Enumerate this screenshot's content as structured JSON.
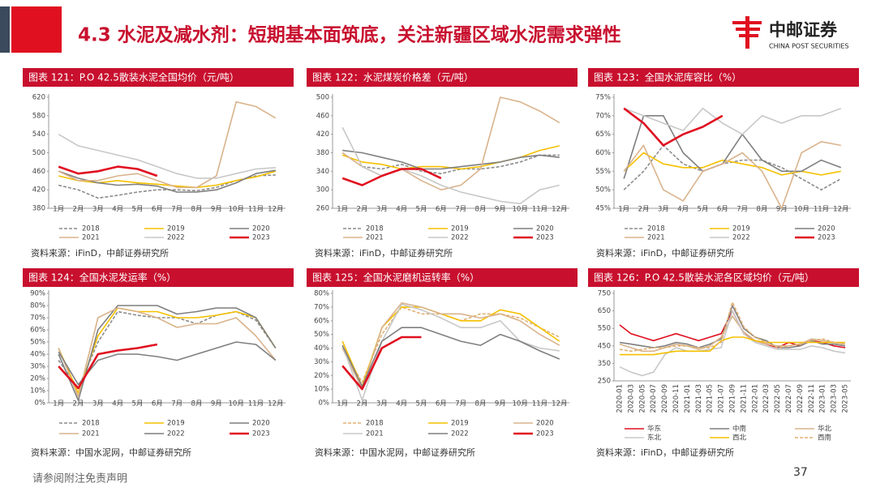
{
  "header": {
    "title": "4.3 水泥及减水剂：短期基本面筑底，关注新疆区域水泥需求弹性",
    "logo_cn": "中邮证券",
    "logo_en": "CHINA POST SECURITIES"
  },
  "footer": {
    "disclaimer": "请参阅附注免责声明",
    "page": "37"
  },
  "chart_data": [
    {
      "type": "line",
      "title": "图表 121：P.O 42.5散装水泥全国均价（元/吨）",
      "source": "资料来源：iFinD，中邮证券研究所",
      "categories": [
        "1月",
        "2月",
        "3月",
        "4月",
        "5月",
        "6月",
        "7月",
        "8月",
        "9月",
        "10月",
        "11月",
        "12月"
      ],
      "ylim": [
        380,
        620
      ],
      "yticks": [
        380,
        420,
        460,
        500,
        540,
        580,
        620
      ],
      "series": [
        {
          "name": "2018",
          "color": "#8c8c8c",
          "dashed": true,
          "values": [
            430,
            420,
            402,
            408,
            415,
            420,
            420,
            418,
            425,
            440,
            450,
            452
          ]
        },
        {
          "name": "2019",
          "color": "#f5c000",
          "values": [
            450,
            440,
            435,
            440,
            435,
            432,
            428,
            425,
            430,
            440,
            448,
            460
          ]
        },
        {
          "name": "2020",
          "color": "#7f7f7f",
          "values": [
            460,
            445,
            435,
            430,
            432,
            428,
            415,
            415,
            420,
            435,
            455,
            462
          ]
        },
        {
          "name": "2021",
          "color": "#d9b38c",
          "values": [
            460,
            440,
            440,
            450,
            455,
            440,
            425,
            425,
            450,
            610,
            600,
            575
          ]
        },
        {
          "name": "2022",
          "color": "#c8c8c8",
          "values": [
            540,
            515,
            505,
            495,
            485,
            470,
            455,
            445,
            445,
            455,
            465,
            468
          ]
        },
        {
          "name": "2023",
          "color": "#e01020",
          "values": [
            470,
            455,
            460,
            470,
            465,
            450,
            null,
            null,
            null,
            null,
            null,
            null
          ]
        }
      ]
    },
    {
      "type": "line",
      "title": "图表 122：水泥煤炭价格差（元/吨）",
      "source": "资料来源：iFinD，中邮证券研究所",
      "categories": [
        "1月",
        "2月",
        "3月",
        "4月",
        "5月",
        "6月",
        "7月",
        "8月",
        "9月",
        "10月",
        "11月",
        "12月"
      ],
      "ylim": [
        260,
        500
      ],
      "yticks": [
        260,
        300,
        340,
        380,
        420,
        460,
        500
      ],
      "series": [
        {
          "name": "2018",
          "color": "#8c8c8c",
          "dashed": true,
          "values": [
            380,
            350,
            345,
            355,
            340,
            335,
            345,
            345,
            350,
            360,
            375,
            375
          ]
        },
        {
          "name": "2019",
          "color": "#f5c000",
          "values": [
            375,
            360,
            355,
            345,
            350,
            350,
            345,
            350,
            360,
            370,
            385,
            395
          ]
        },
        {
          "name": "2020",
          "color": "#7f7f7f",
          "values": [
            385,
            380,
            370,
            360,
            345,
            345,
            350,
            355,
            360,
            370,
            375,
            370
          ]
        },
        {
          "name": "2021",
          "color": "#d9b38c",
          "values": [
            380,
            350,
            330,
            345,
            320,
            300,
            310,
            345,
            500,
            490,
            470,
            445
          ]
        },
        {
          "name": "2022",
          "color": "#c8c8c8",
          "values": [
            435,
            350,
            330,
            345,
            330,
            310,
            295,
            285,
            275,
            270,
            300,
            310
          ]
        },
        {
          "name": "2023",
          "color": "#e01020",
          "values": [
            325,
            310,
            330,
            345,
            345,
            325,
            null,
            null,
            null,
            null,
            null,
            null
          ]
        }
      ]
    },
    {
      "type": "line",
      "title": "图表 123：全国水泥库容比（%）",
      "source": "资料来源：iFinD，中邮证券研究所",
      "categories": [
        "1月",
        "2月",
        "3月",
        "4月",
        "5月",
        "6月",
        "7月",
        "8月",
        "9月",
        "10月",
        "11月",
        "12月"
      ],
      "ylim": [
        45,
        75
      ],
      "yticks": [
        {
          "value": 45,
          "label": "45%"
        },
        {
          "value": 50,
          "label": "50%"
        },
        {
          "value": 55,
          "label": "55%"
        },
        {
          "value": 60,
          "label": "60%"
        },
        {
          "value": 65,
          "label": "65%"
        },
        {
          "value": 70,
          "label": "70%"
        },
        {
          "value": 75,
          "label": "75%"
        }
      ],
      "series": [
        {
          "name": "2018",
          "color": "#8c8c8c",
          "dashed": true,
          "values": [
            50,
            55,
            62,
            57,
            55,
            57,
            58,
            58,
            56,
            53,
            50,
            53
          ]
        },
        {
          "name": "2019",
          "color": "#f5c000",
          "values": [
            55,
            60,
            57,
            56,
            56,
            58,
            57,
            56,
            54,
            55,
            54,
            55
          ]
        },
        {
          "name": "2020",
          "color": "#7f7f7f",
          "values": [
            53,
            70,
            70,
            60,
            55,
            57,
            65,
            58,
            55,
            55,
            58,
            56
          ]
        },
        {
          "name": "2021",
          "color": "#d9b38c",
          "values": [
            55,
            62,
            50,
            47,
            55,
            57,
            60,
            55,
            45,
            60,
            63,
            62
          ]
        },
        {
          "name": "2022",
          "color": "#c8c8c8",
          "values": [
            72,
            70,
            68,
            66,
            72,
            68,
            65,
            70,
            68,
            70,
            70,
            72
          ]
        },
        {
          "name": "2023",
          "color": "#e01020",
          "values": [
            72,
            68,
            62,
            65,
            67,
            70,
            null,
            null,
            null,
            null,
            null,
            null
          ]
        }
      ]
    },
    {
      "type": "line",
      "title": "图表 124：全国水泥发运率（%）",
      "source": "资料来源：中国水泥网，中邮证券研究所",
      "categories": [
        "1月",
        "2月",
        "3月",
        "4月",
        "5月",
        "6月",
        "7月",
        "8月",
        "9月",
        "10月",
        "11月",
        "12月"
      ],
      "ylim": [
        0,
        90
      ],
      "yticks": [
        {
          "value": 0,
          "label": "0%"
        },
        {
          "value": 10,
          "label": "10%"
        },
        {
          "value": 20,
          "label": "20%"
        },
        {
          "value": 30,
          "label": "30%"
        },
        {
          "value": 40,
          "label": "40%"
        },
        {
          "value": 50,
          "label": "50%"
        },
        {
          "value": 60,
          "label": "60%"
        },
        {
          "value": 70,
          "label": "70%"
        },
        {
          "value": 80,
          "label": "80%"
        },
        {
          "value": 90,
          "label": "90%"
        }
      ],
      "series": [
        {
          "name": "2018",
          "color": "#8c8c8c",
          "dashed": true,
          "values": [
            35,
            12,
            50,
            75,
            72,
            70,
            70,
            65,
            72,
            75,
            68,
            45
          ]
        },
        {
          "name": "2019",
          "color": "#f5c000",
          "values": [
            45,
            8,
            55,
            78,
            75,
            75,
            70,
            70,
            72,
            75,
            70,
            45
          ]
        },
        {
          "name": "2020",
          "color": "#7f7f7f",
          "values": [
            40,
            2,
            60,
            80,
            80,
            80,
            73,
            75,
            78,
            78,
            70,
            45
          ]
        },
        {
          "name": "2021",
          "color": "#d9b38c",
          "values": [
            45,
            5,
            70,
            78,
            75,
            70,
            62,
            65,
            65,
            70,
            55,
            35
          ]
        },
        {
          "name": "2022",
          "color": "#7f7f7f",
          "values": [
            42,
            15,
            35,
            40,
            40,
            38,
            35,
            40,
            45,
            50,
            48,
            35
          ]
        },
        {
          "name": "2023",
          "color": "#e01020",
          "values": [
            30,
            12,
            40,
            43,
            45,
            48,
            null,
            null,
            null,
            null,
            null,
            null
          ]
        }
      ]
    },
    {
      "type": "line",
      "title": "图表 125：全国水泥磨机运转率（%）",
      "source": "资料来源：中国水泥网，中邮证券研究所",
      "categories": [
        "1月",
        "2月",
        "3月",
        "4月",
        "5月",
        "6月",
        "7月",
        "8月",
        "9月",
        "10月",
        "11月",
        "12月"
      ],
      "ylim": [
        0,
        80
      ],
      "yticks": [
        {
          "value": 0,
          "label": "0%"
        },
        {
          "value": 10,
          "label": "10%"
        },
        {
          "value": 20,
          "label": "20%"
        },
        {
          "value": 30,
          "label": "30%"
        },
        {
          "value": 40,
          "label": "40%"
        },
        {
          "value": 50,
          "label": "50%"
        },
        {
          "value": 60,
          "label": "60%"
        },
        {
          "value": 70,
          "label": "70%"
        },
        {
          "value": 80,
          "label": "80%"
        }
      ],
      "series": [
        {
          "name": "2018",
          "color": "#e0b070",
          "dashed": true,
          "values": [
            40,
            15,
            50,
            70,
            65,
            65,
            60,
            65,
            65,
            62,
            55,
            48
          ]
        },
        {
          "name": "2019",
          "color": "#f5c000",
          "values": [
            45,
            12,
            55,
            70,
            70,
            65,
            60,
            60,
            68,
            65,
            55,
            45
          ]
        },
        {
          "name": "2020",
          "color": "#d9b38c",
          "values": [
            40,
            10,
            55,
            73,
            70,
            65,
            65,
            62,
            65,
            60,
            50,
            42
          ]
        },
        {
          "name": "2021",
          "color": "#c8c8c8",
          "values": [
            42,
            2,
            45,
            72,
            68,
            62,
            55,
            55,
            60,
            45,
            40,
            38
          ]
        },
        {
          "name": "2022",
          "color": "#7f7f7f",
          "values": [
            42,
            12,
            45,
            55,
            55,
            50,
            45,
            42,
            50,
            45,
            38,
            32
          ]
        },
        {
          "name": "2023",
          "color": "#e01020",
          "values": [
            27,
            10,
            40,
            48,
            48,
            null,
            null,
            null,
            null,
            null,
            null,
            null
          ]
        }
      ]
    },
    {
      "type": "line",
      "title": "图表 126：P.O 42.5散装水泥各区域均价（元/吨）",
      "source": "资料来源：iFinD，中邮证券研究所",
      "categories": [
        "2020-01",
        "2020-03",
        "2020-05",
        "2020-07",
        "2020-09",
        "2020-11",
        "2021-01",
        "2021-03",
        "2021-05",
        "2021-07",
        "2021-09",
        "2021-11",
        "2022-01",
        "2022-03",
        "2022-05",
        "2022-07",
        "2022-09",
        "2022-11",
        "2023-01",
        "2023-03",
        "2023-05"
      ],
      "ylim": [
        250,
        750
      ],
      "yticks": [
        250,
        350,
        450,
        550,
        650,
        750
      ],
      "series": [
        {
          "name": "华东",
          "color": "#e01020",
          "values": [
            570,
            520,
            500,
            480,
            500,
            520,
            500,
            480,
            500,
            520,
            650,
            520,
            480,
            460,
            440,
            470,
            450,
            480,
            470,
            450,
            440
          ]
        },
        {
          "name": "中南",
          "color": "#7f7f7f",
          "values": [
            470,
            460,
            450,
            440,
            450,
            470,
            460,
            440,
            460,
            490,
            680,
            550,
            500,
            480,
            440,
            440,
            450,
            480,
            460,
            460,
            450
          ]
        },
        {
          "name": "华北",
          "color": "#d9b38c",
          "values": [
            460,
            440,
            420,
            420,
            440,
            460,
            450,
            430,
            450,
            500,
            620,
            530,
            480,
            460,
            450,
            450,
            460,
            490,
            480,
            470,
            460
          ]
        },
        {
          "name": "东北",
          "color": "#c8c8c8",
          "values": [
            330,
            300,
            280,
            300,
            400,
            440,
            420,
            420,
            430,
            440,
            650,
            520,
            470,
            450,
            430,
            430,
            430,
            450,
            440,
            420,
            410
          ]
        },
        {
          "name": "西北",
          "color": "#f5c000",
          "values": [
            400,
            400,
            400,
            400,
            410,
            420,
            420,
            420,
            420,
            480,
            500,
            500,
            480,
            470,
            470,
            470,
            470,
            470,
            470,
            470,
            470
          ]
        },
        {
          "name": "西南",
          "color": "#e0b070",
          "dashed": true,
          "values": [
            430,
            420,
            430,
            440,
            440,
            450,
            450,
            440,
            440,
            470,
            700,
            560,
            500,
            470,
            440,
            450,
            460,
            480,
            490,
            470,
            460
          ]
        }
      ]
    }
  ]
}
